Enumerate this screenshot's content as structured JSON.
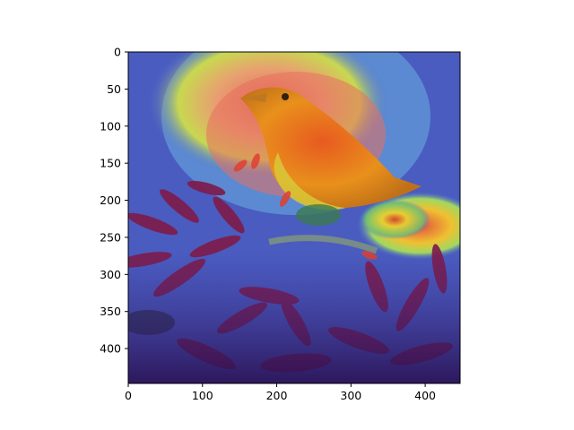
{
  "figure": {
    "image_description_icon": "bird-on-flowers-heatmap-icon",
    "heatmap_colormap": "jet",
    "overlay": "attention heatmap over photo"
  },
  "axes": {
    "x_ticks": [
      "0",
      "100",
      "200",
      "300",
      "400"
    ],
    "y_ticks": [
      "0",
      "50",
      "100",
      "150",
      "200",
      "250",
      "300",
      "350",
      "400"
    ],
    "x_range": [
      0,
      447
    ],
    "y_range": [
      0,
      447
    ]
  },
  "colors": {
    "background_blue": "#4658b8",
    "hot_red": "#e0503a",
    "bird_orange": "#e88a1c",
    "flower_magenta": "#7a1a4a",
    "leaf_yellow": "#d8d830"
  }
}
